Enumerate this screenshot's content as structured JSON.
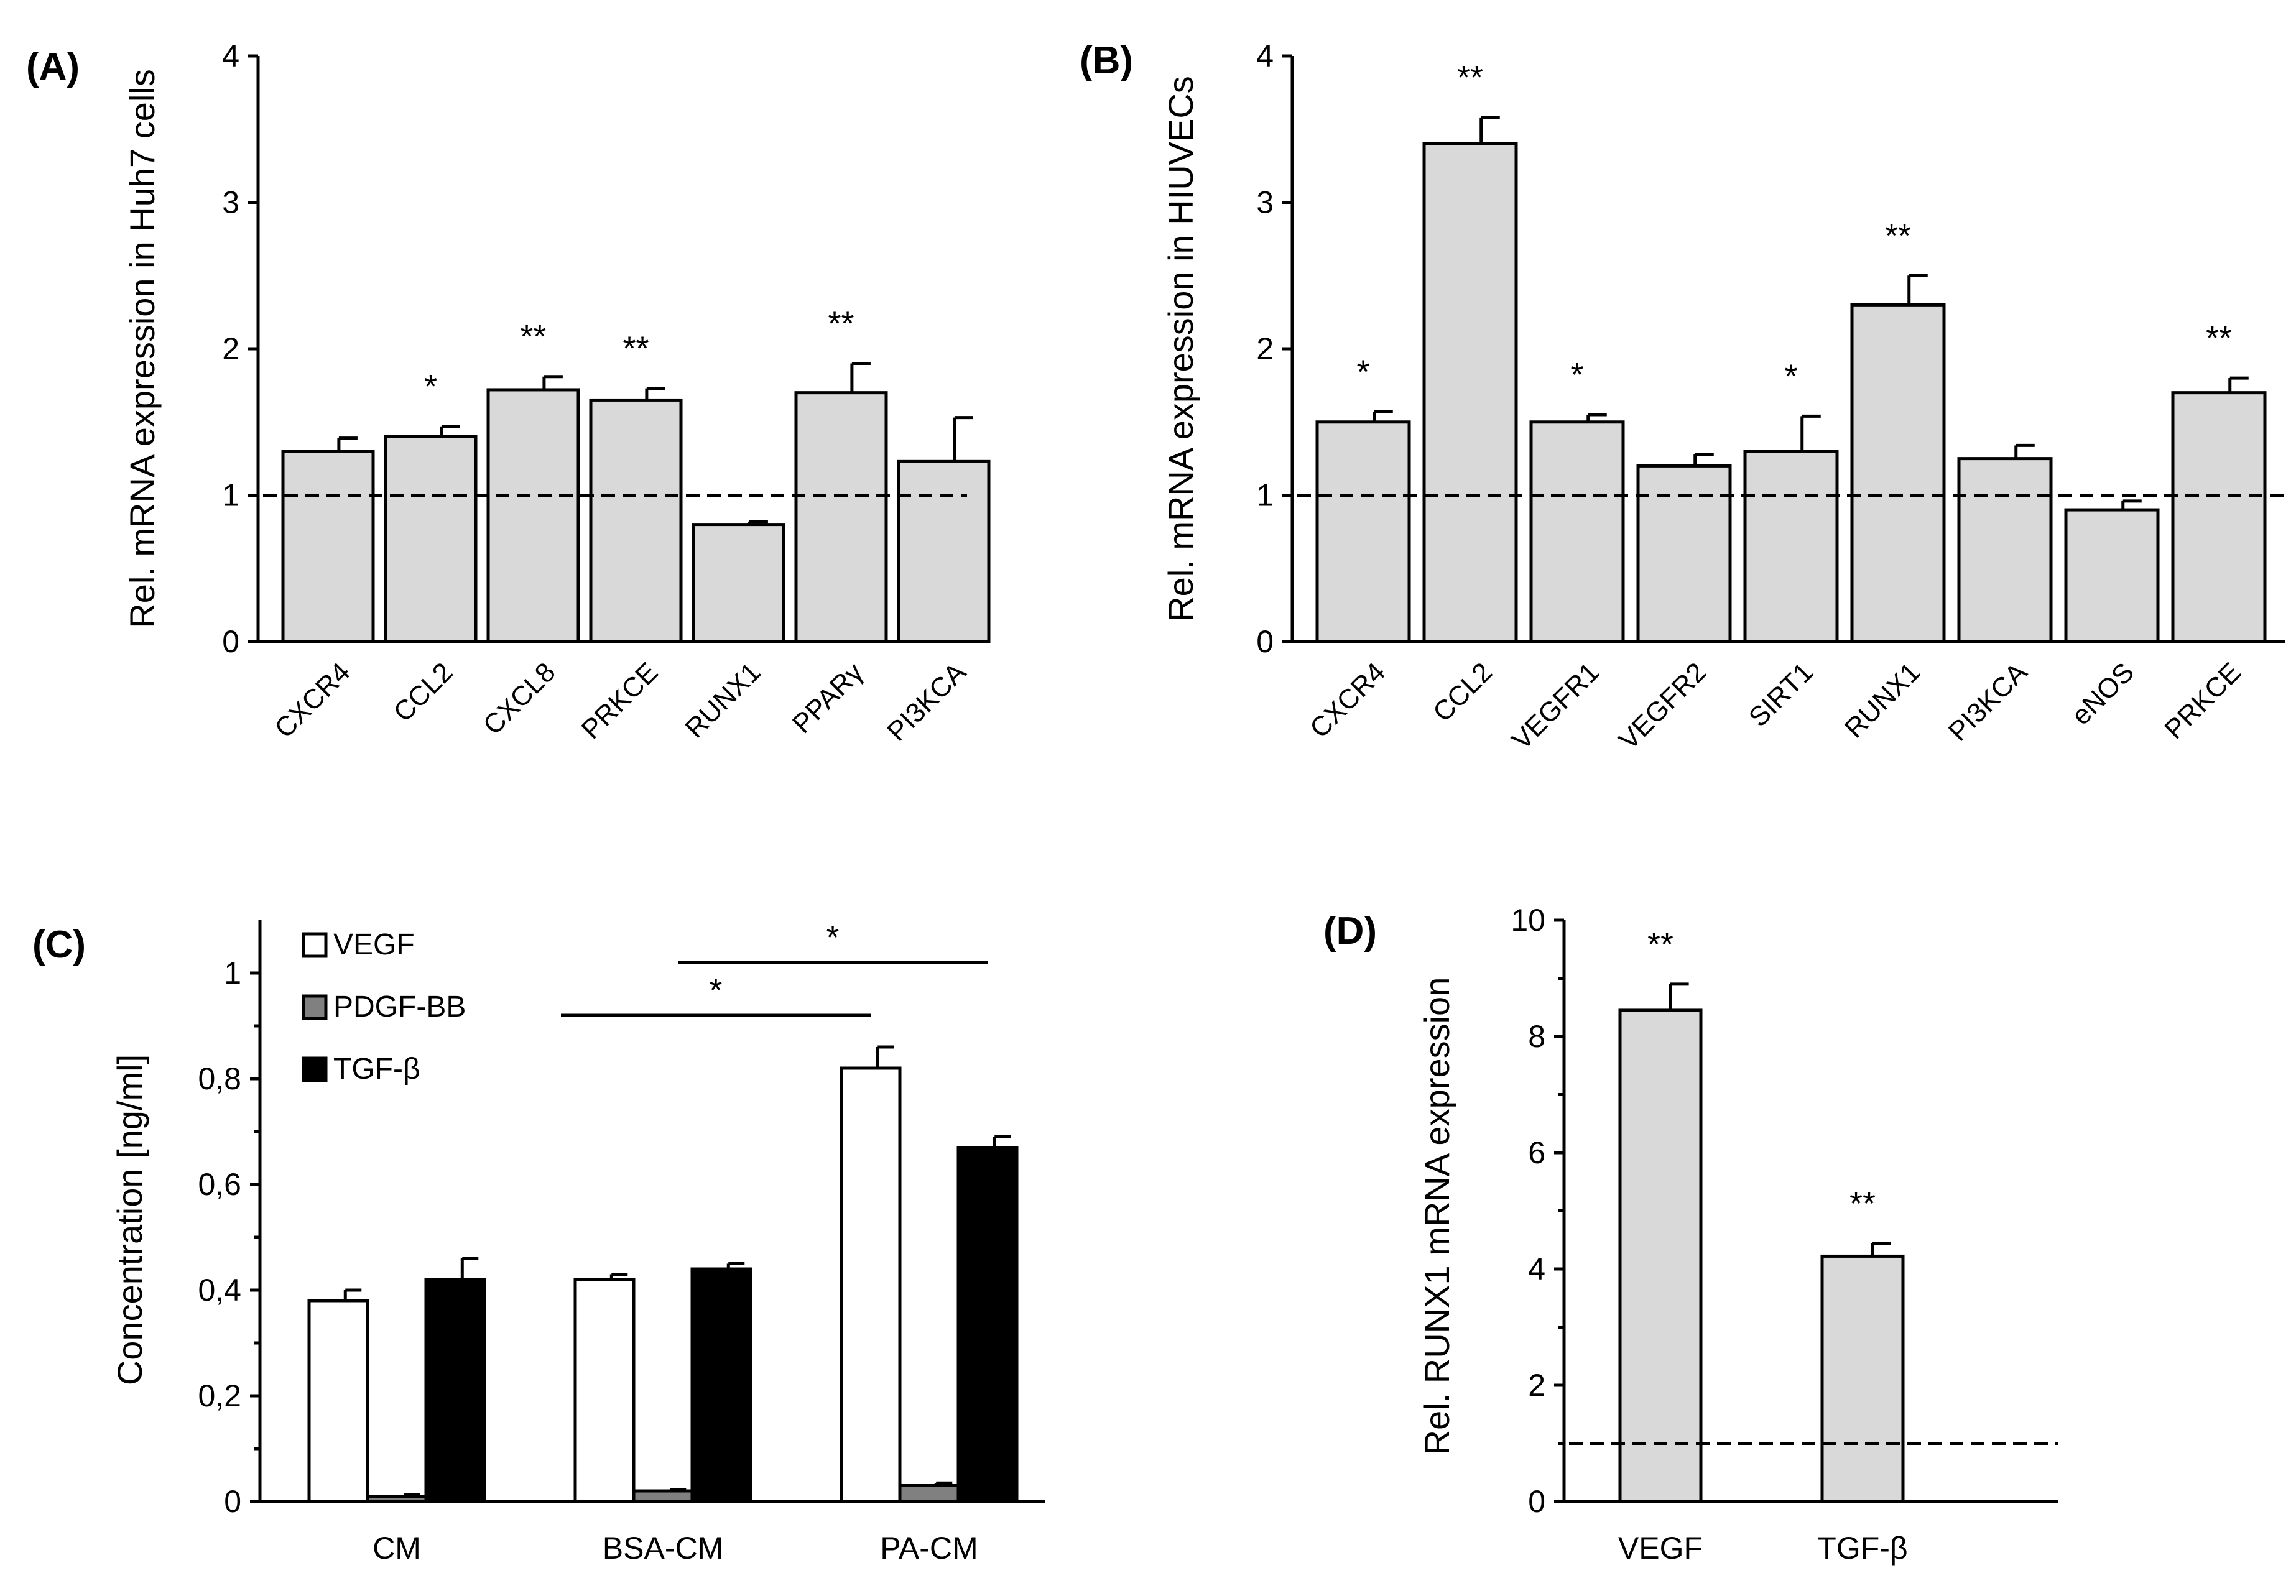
{
  "chart_data": [
    {
      "id": "A",
      "panel_label": "(A)",
      "type": "bar",
      "ylabel": "Rel. mRNA expression in  Huh7 cells",
      "ylim": [
        0,
        4
      ],
      "yticks": [
        "0",
        "1",
        "2",
        "3",
        "4"
      ],
      "reference_line": 1,
      "categories": [
        "CXCR4",
        "CCL2",
        "CXCL8",
        "PRKCE",
        "RUNX1",
        "PPARγ",
        "PI3KCA"
      ],
      "values": [
        1.3,
        1.4,
        1.72,
        1.65,
        0.8,
        1.7,
        1.23
      ],
      "errors": [
        0.09,
        0.07,
        0.09,
        0.08,
        0.02,
        0.2,
        0.3
      ],
      "significance": [
        "",
        "*",
        "**",
        "**",
        "",
        "**",
        ""
      ],
      "bar_color": "#d9d9d9"
    },
    {
      "id": "B",
      "panel_label": "(B)",
      "type": "bar",
      "ylabel": "Rel. mRNA expression in HIUVECs",
      "ylim": [
        0,
        4
      ],
      "yticks": [
        "0",
        "1",
        "2",
        "3",
        "4"
      ],
      "reference_line": 1,
      "categories": [
        "CXCR4",
        "CCL2",
        "VEGFR1",
        "VEGFR2",
        "SIRT1",
        "RUNX1",
        "PI3KCA",
        "eNOS",
        "PRKCE"
      ],
      "values": [
        1.5,
        3.4,
        1.5,
        1.2,
        1.3,
        2.3,
        1.25,
        0.9,
        1.7
      ],
      "errors": [
        0.07,
        0.18,
        0.05,
        0.08,
        0.24,
        0.2,
        0.09,
        0.06,
        0.1
      ],
      "significance": [
        "*",
        "**",
        "*",
        "",
        "*",
        "**",
        "",
        "",
        "**"
      ],
      "bar_color": "#d9d9d9"
    },
    {
      "id": "C",
      "panel_label": "(C)",
      "type": "bar",
      "ylabel": "Concentration [ng/ml]",
      "ylim": [
        0,
        1.1
      ],
      "yticks": [
        "0",
        "0,2",
        "0,4",
        "0,6",
        "0,8",
        "1"
      ],
      "categories": [
        "CM",
        "BSA-CM",
        "PA-CM"
      ],
      "series": [
        {
          "name": "VEGF",
          "color": "#ffffff",
          "values": [
            0.38,
            0.42,
            0.82
          ],
          "errors": [
            0.02,
            0.01,
            0.04
          ]
        },
        {
          "name": "PDGF-BB",
          "color": "#808080",
          "values": [
            0.01,
            0.02,
            0.03
          ],
          "errors": [
            0.003,
            0.003,
            0.005
          ]
        },
        {
          "name": "TGF-β",
          "color": "#000000",
          "values": [
            0.42,
            0.44,
            0.67
          ],
          "errors": [
            0.04,
            0.01,
            0.02
          ]
        }
      ],
      "comparisons": [
        {
          "label": "*",
          "from": "BSA-CM VEGF",
          "to": "PA-CM VEGF",
          "y": 0.92
        },
        {
          "label": "*",
          "from": "BSA-CM TGF-β",
          "to": "PA-CM TGF-β",
          "y": 1.02
        }
      ],
      "legend_position": "top-left"
    },
    {
      "id": "D",
      "panel_label": "(D)",
      "type": "bar",
      "ylabel": "Rel. RUNX1 mRNA expression",
      "ylim": [
        0,
        10
      ],
      "yticks": [
        "0",
        "2",
        "4",
        "6",
        "8",
        "10"
      ],
      "reference_line": 1,
      "categories": [
        "VEGF",
        "TGF-β"
      ],
      "values": [
        8.45,
        4.22
      ],
      "errors": [
        0.45,
        0.22
      ],
      "significance": [
        "**",
        "**"
      ],
      "bar_color": "#d9d9d9"
    }
  ]
}
